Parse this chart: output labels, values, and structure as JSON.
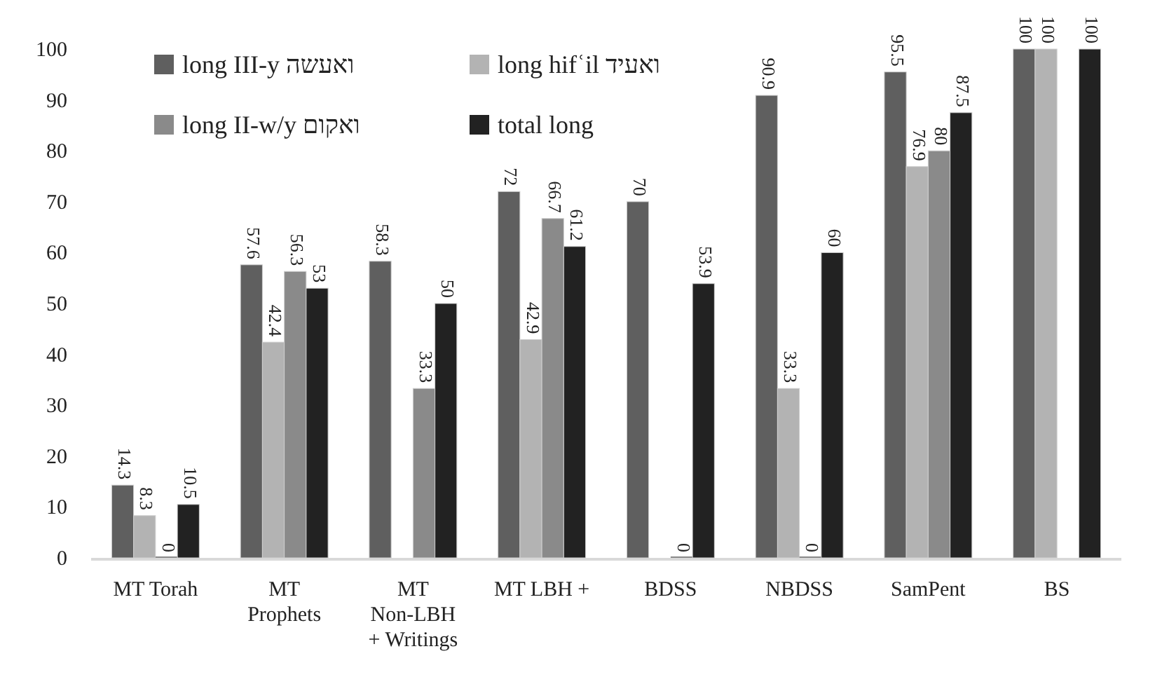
{
  "chart_data": {
    "type": "bar",
    "categories": [
      "MT Torah",
      "MT Prophets",
      "MT Non-LBH + Writings",
      "MT LBH +",
      "BDSS",
      "NBDSS",
      "SamPent",
      "BS"
    ],
    "series": [
      {
        "name": "long III-y ואעשה",
        "color": "#5f5f5f",
        "values": [
          14.3,
          57.6,
          58.3,
          72,
          70,
          90.9,
          95.5,
          100
        ]
      },
      {
        "name": "long hifʿil ואעיד",
        "color": "#b3b3b3",
        "values": [
          8.3,
          42.4,
          null,
          42.9,
          null,
          33.3,
          76.9,
          100
        ]
      },
      {
        "name": "long II-w/y ואקום",
        "color": "#8a8a8a",
        "values": [
          0,
          56.3,
          33.3,
          66.7,
          0,
          0,
          80,
          null
        ]
      },
      {
        "name": "total long",
        "color": "#222222",
        "values": [
          10.5,
          53,
          50,
          61.2,
          53.9,
          60,
          87.5,
          100
        ]
      }
    ],
    "ylim": [
      0,
      100
    ],
    "yticks": [
      0,
      10,
      20,
      30,
      40,
      50,
      60,
      70,
      80,
      90,
      100
    ],
    "data_labels": true,
    "legend": "top left",
    "grid": false
  }
}
